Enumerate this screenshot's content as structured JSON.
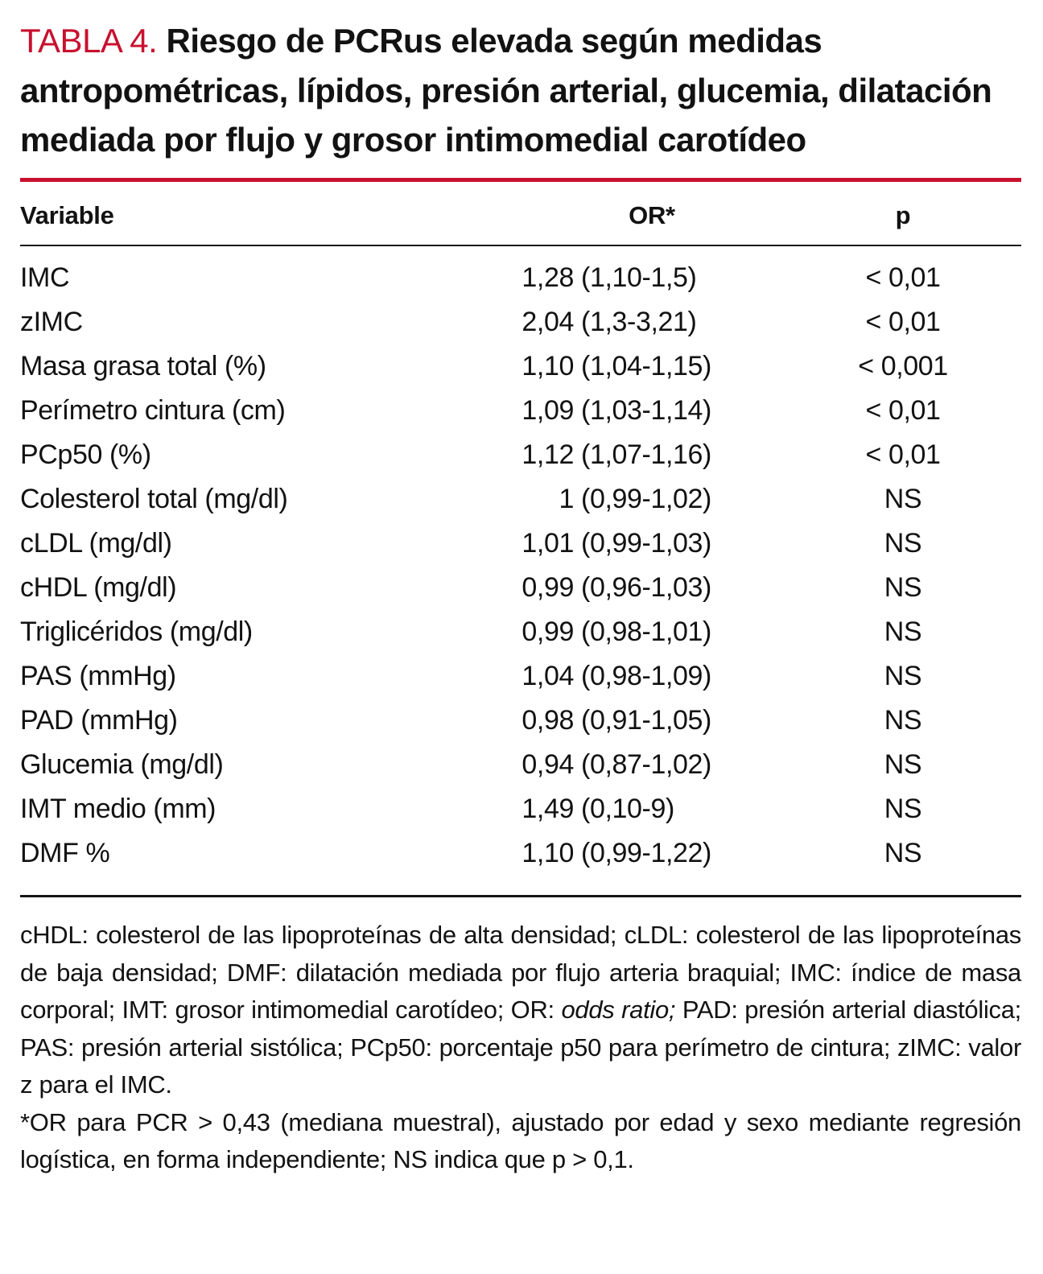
{
  "colors": {
    "accent_red": "#c8102e",
    "text": "#121212"
  },
  "title": {
    "label": "TABLA 4.",
    "text": "Riesgo de PCRus elevada según medidas antropométricas, lípidos, presión arterial, glucemia, dilatación mediada por flujo y grosor intimomedial carotídeo"
  },
  "table": {
    "headers": {
      "variable": "Variable",
      "or": "OR*",
      "p": "p"
    },
    "rows": [
      {
        "variable": "IMC",
        "or_value": "1,28",
        "or_ci": "(1,10-1,5)",
        "p": "< 0,01"
      },
      {
        "variable": "zIMC",
        "or_value": "2,04",
        "or_ci": "(1,3-3,21)",
        "p": "< 0,01"
      },
      {
        "variable": "Masa grasa total (%)",
        "or_value": "1,10",
        "or_ci": "(1,04-1,15)",
        "p": "< 0,001"
      },
      {
        "variable": "Perímetro cintura (cm)",
        "or_value": "1,09",
        "or_ci": "(1,03-1,14)",
        "p": "< 0,01"
      },
      {
        "variable": "PCp50 (%)",
        "or_value": "1,12",
        "or_ci": "(1,07-1,16)",
        "p": "< 0,01"
      },
      {
        "variable": "Colesterol total (mg/dl)",
        "or_value": "1",
        "or_ci": "(0,99-1,02)",
        "p": "NS"
      },
      {
        "variable": "cLDL (mg/dl)",
        "or_value": "1,01",
        "or_ci": "(0,99-1,03)",
        "p": "NS"
      },
      {
        "variable": "cHDL (mg/dl)",
        "or_value": "0,99",
        "or_ci": "(0,96-1,03)",
        "p": "NS"
      },
      {
        "variable": "Triglicéridos (mg/dl)",
        "or_value": "0,99",
        "or_ci": "(0,98-1,01)",
        "p": "NS"
      },
      {
        "variable": "PAS (mmHg)",
        "or_value": "1,04",
        "or_ci": "(0,98-1,09)",
        "p": "NS"
      },
      {
        "variable": "PAD (mmHg)",
        "or_value": "0,98",
        "or_ci": "(0,91-1,05)",
        "p": "NS"
      },
      {
        "variable": "Glucemia (mg/dl)",
        "or_value": "0,94",
        "or_ci": "(0,87-1,02)",
        "p": "NS"
      },
      {
        "variable": "IMT medio (mm)",
        "or_value": "1,49",
        "or_ci": "(0,10-9)",
        "p": "NS"
      },
      {
        "variable": "DMF %",
        "or_value": "1,10",
        "or_ci": "(0,99-1,22)",
        "p": "NS"
      }
    ]
  },
  "footnotes": {
    "abbrev_parts": [
      {
        "text": "cHDL: colesterol de las lipoproteínas de alta densidad; cLDL: colesterol de las lipoproteínas de baja densidad; DMF: dilatación mediada por flujo arteria braquial; IMC: índice de masa corporal; IMT: grosor intimomedial carotídeo; OR: "
      },
      {
        "text": "odds ratio;"
      },
      {
        "text": " PAD: presión arterial diastólica; PAS: presión arterial sistólica; PCp50: porcentaje p50 para perímetro de cintura; zIMC: valor z para el IMC."
      }
    ],
    "or_note": "*OR para PCR > 0,43 (mediana muestral), ajustado por edad y sexo mediante regresión logística, en forma independiente; NS indica que p > 0,1."
  }
}
